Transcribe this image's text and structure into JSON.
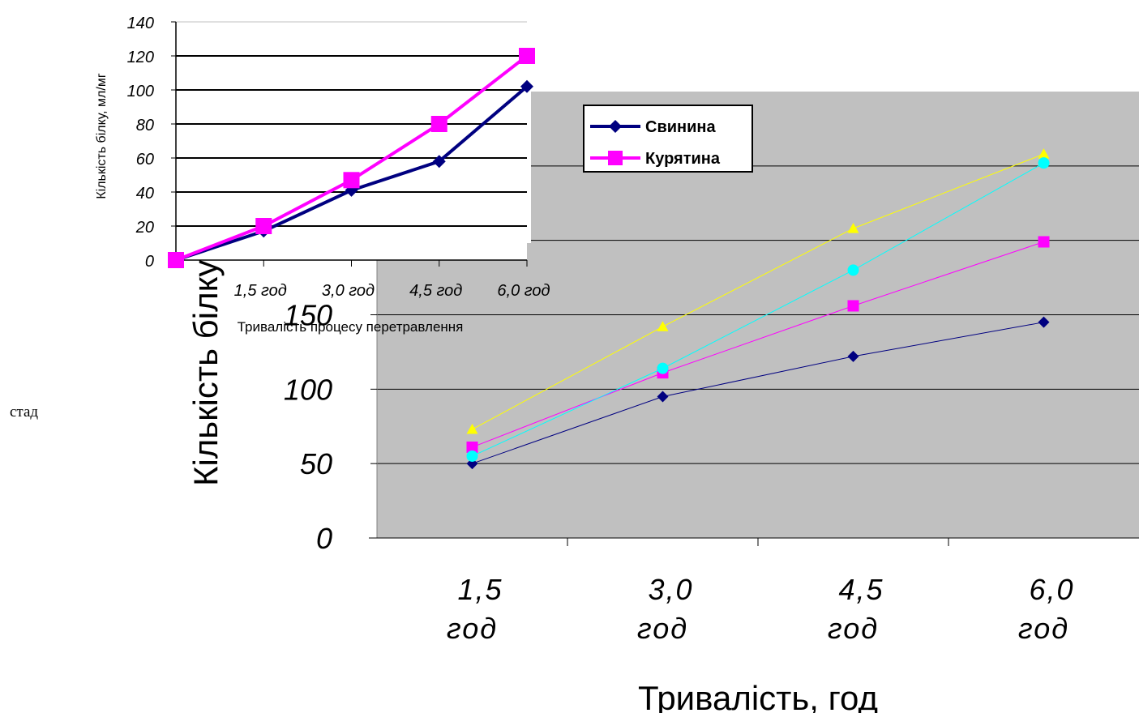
{
  "stray_text": "стад",
  "chart_data": [
    {
      "type": "line",
      "title": "",
      "xlabel": "Тривалість процесу перетравлення",
      "ylabel": "Кількість білку, мл/мг",
      "categories": [
        "",
        "1,5 год",
        "3,0 год",
        "4,5 год",
        "6,0 год"
      ],
      "ylim": [
        0,
        140
      ],
      "yticks": [
        0,
        20,
        40,
        60,
        80,
        100,
        120,
        140
      ],
      "grid": true,
      "legend_position": "right",
      "series": [
        {
          "name": "Свинина",
          "color": "#000080",
          "marker": "diamond",
          "values": [
            0,
            17,
            41,
            58,
            102
          ]
        },
        {
          "name": "Курятина",
          "color": "#ff00ff",
          "marker": "square",
          "values": [
            0,
            20,
            47,
            80,
            120
          ]
        }
      ]
    },
    {
      "type": "line",
      "title": "",
      "xlabel": "Тривалість, год",
      "ylabel": "Кількість білку",
      "categories": [
        "1,5\nгод",
        "3,0\nгод",
        "4,5\nгод",
        "6,0\nгод"
      ],
      "ylim": [
        0,
        300
      ],
      "yticks": [
        0,
        50,
        100,
        150
      ],
      "grid": true,
      "plot_background": "#c0c0c0",
      "series": [
        {
          "color": "#000080",
          "marker": "diamond",
          "values": [
            50,
            95,
            122,
            145
          ]
        },
        {
          "color": "#ff00ff",
          "marker": "square",
          "values": [
            61,
            111,
            156,
            199
          ]
        },
        {
          "color": "#ffff00",
          "marker": "triangle",
          "values": [
            73,
            142,
            208,
            258
          ]
        },
        {
          "color": "#00ffff",
          "marker": "circle",
          "values": [
            55,
            114,
            180,
            252
          ]
        }
      ]
    }
  ]
}
